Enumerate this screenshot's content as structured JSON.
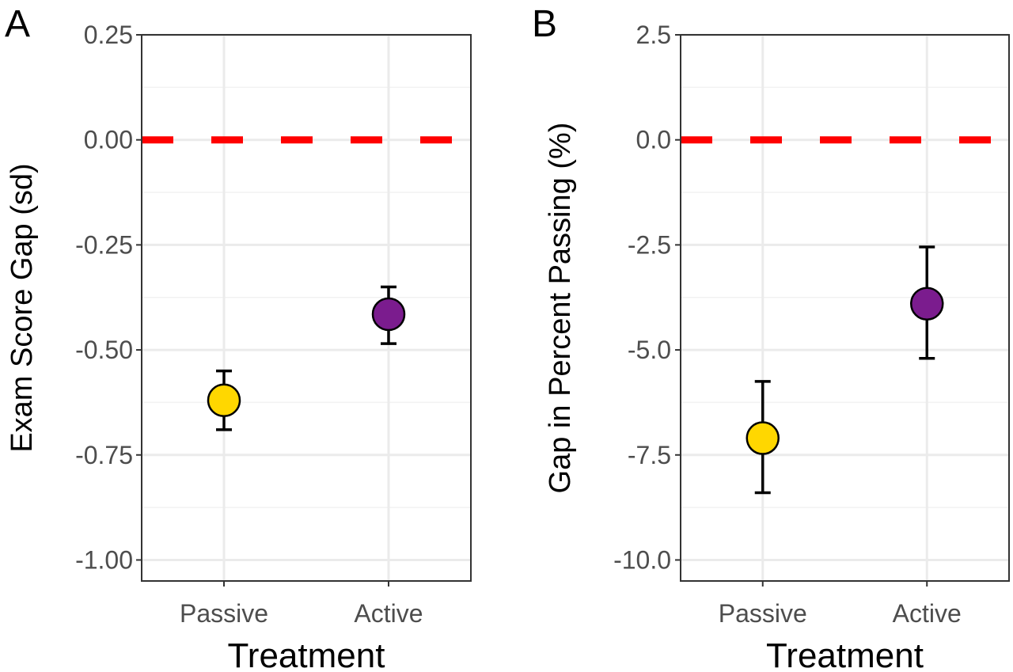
{
  "chart_data": [
    {
      "panel": "A",
      "type": "scatter",
      "xlabel": "Treatment",
      "ylabel": "Exam Score Gap (sd)",
      "categories": [
        "Passive",
        "Active"
      ],
      "values": [
        -0.62,
        -0.415
      ],
      "error_low": [
        -0.69,
        -0.485
      ],
      "error_high": [
        -0.55,
        -0.35
      ],
      "point_colors": [
        "#FFD700",
        "#7B1C8E"
      ],
      "ylim": [
        -1.05,
        0.25
      ],
      "yticks": [
        0.25,
        0.0,
        -0.25,
        -0.5,
        -0.75,
        -1.0
      ],
      "ytick_labels": [
        "0.25",
        "0.00",
        "-0.25",
        "-0.50",
        "-0.75",
        "-1.00"
      ],
      "reference_line": 0.0,
      "reference_color": "#FF0000",
      "grid": true
    },
    {
      "panel": "B",
      "type": "scatter",
      "xlabel": "Treatment",
      "ylabel": "Gap in Percent Passing (%)",
      "categories": [
        "Passive",
        "Active"
      ],
      "values": [
        -7.1,
        -3.9
      ],
      "error_low": [
        -8.4,
        -5.2
      ],
      "error_high": [
        -5.75,
        -2.55
      ],
      "point_colors": [
        "#FFD700",
        "#7B1C8E"
      ],
      "ylim": [
        -10.5,
        2.5
      ],
      "yticks": [
        2.5,
        0.0,
        -2.5,
        -5.0,
        -7.5,
        -10.0
      ],
      "ytick_labels": [
        "2.5",
        "0.0",
        "-2.5",
        "-5.0",
        "-7.5",
        "-10.0"
      ],
      "reference_line": 0.0,
      "reference_color": "#FF0000",
      "grid": true
    }
  ]
}
